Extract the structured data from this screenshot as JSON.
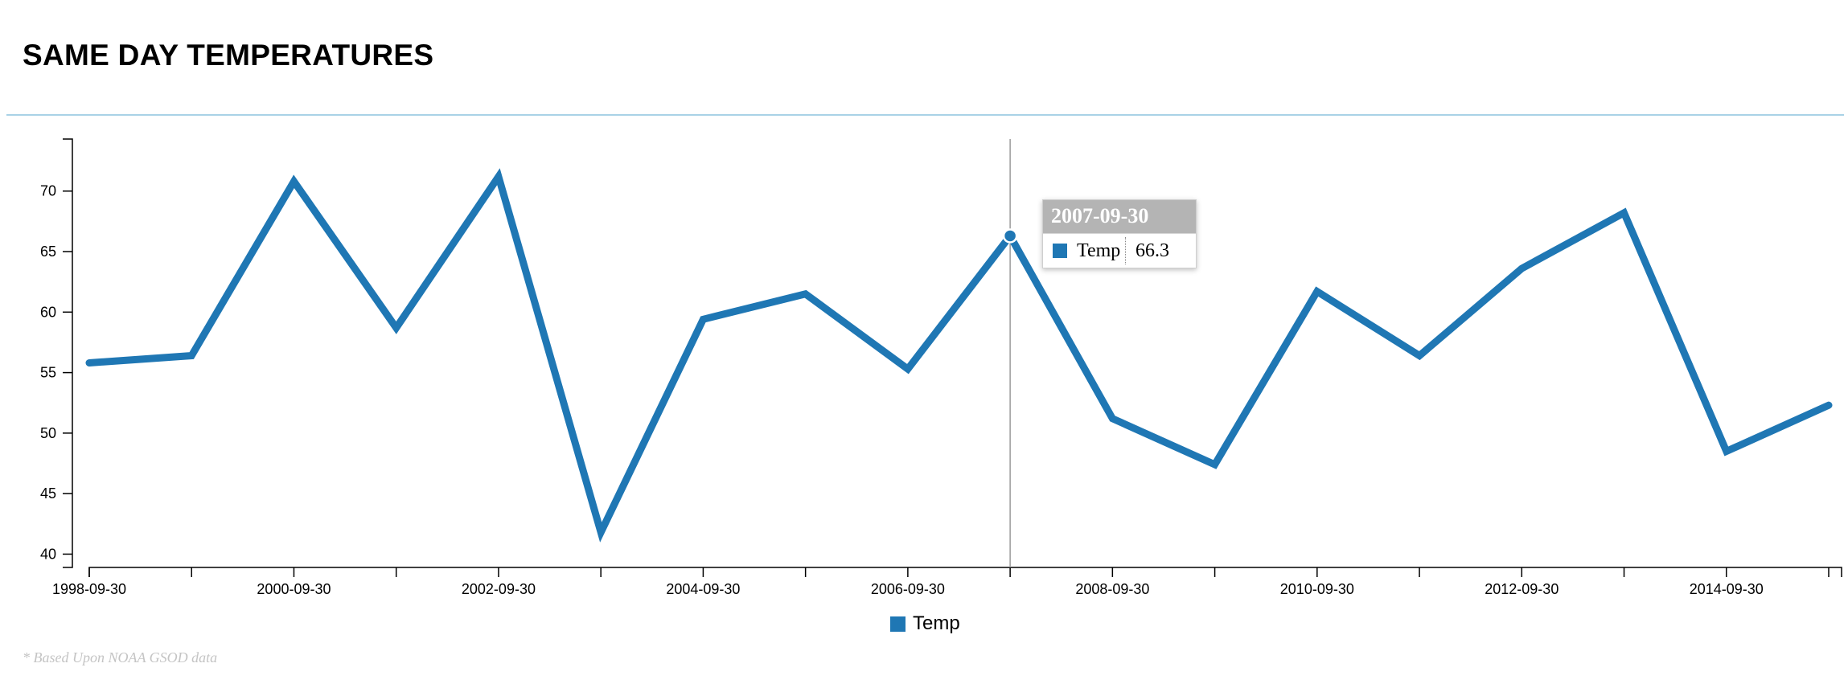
{
  "page": {
    "title": "SAME DAY TEMPERATURES",
    "source_note": "* Based Upon NOAA GSOD data"
  },
  "colors": {
    "series": "#1f77b4",
    "divider": "#a9d2e6",
    "tooltip_header_bg": "#b4b4b4",
    "source_note": "#c4c4c4"
  },
  "chart_data": {
    "type": "line",
    "title": "",
    "xlabel": "",
    "ylabel": "",
    "x": [
      "1998-09-30",
      "1999-09-30",
      "2000-09-30",
      "2001-09-30",
      "2002-09-30",
      "2003-09-30",
      "2004-09-30",
      "2005-09-30",
      "2006-09-30",
      "2007-09-30",
      "2008-09-30",
      "2009-09-30",
      "2010-09-30",
      "2011-09-30",
      "2012-09-30",
      "2013-09-30",
      "2014-09-30",
      "2015-09-30"
    ],
    "x_tick_labels": [
      "1998-09-30",
      "",
      "2000-09-30",
      "",
      "2002-09-30",
      "",
      "2004-09-30",
      "",
      "2006-09-30",
      "",
      "2008-09-30",
      "",
      "2010-09-30",
      "",
      "2012-09-30",
      "",
      "2014-09-30",
      ""
    ],
    "series": [
      {
        "name": "Temp",
        "color": "#1f77b4",
        "values": [
          55.8,
          56.4,
          70.8,
          58.7,
          71.2,
          41.8,
          59.4,
          61.5,
          55.3,
          66.3,
          51.2,
          47.4,
          61.7,
          56.4,
          63.6,
          68.2,
          48.5,
          52.3
        ]
      }
    ],
    "y_ticks": [
      40,
      45,
      50,
      55,
      60,
      65,
      70
    ],
    "ylim": [
      38.9,
      74.3
    ],
    "grid": false,
    "legend": "bottom-center",
    "highlight": {
      "date": "2007-09-30",
      "series": "Temp",
      "value": "66.3"
    }
  }
}
